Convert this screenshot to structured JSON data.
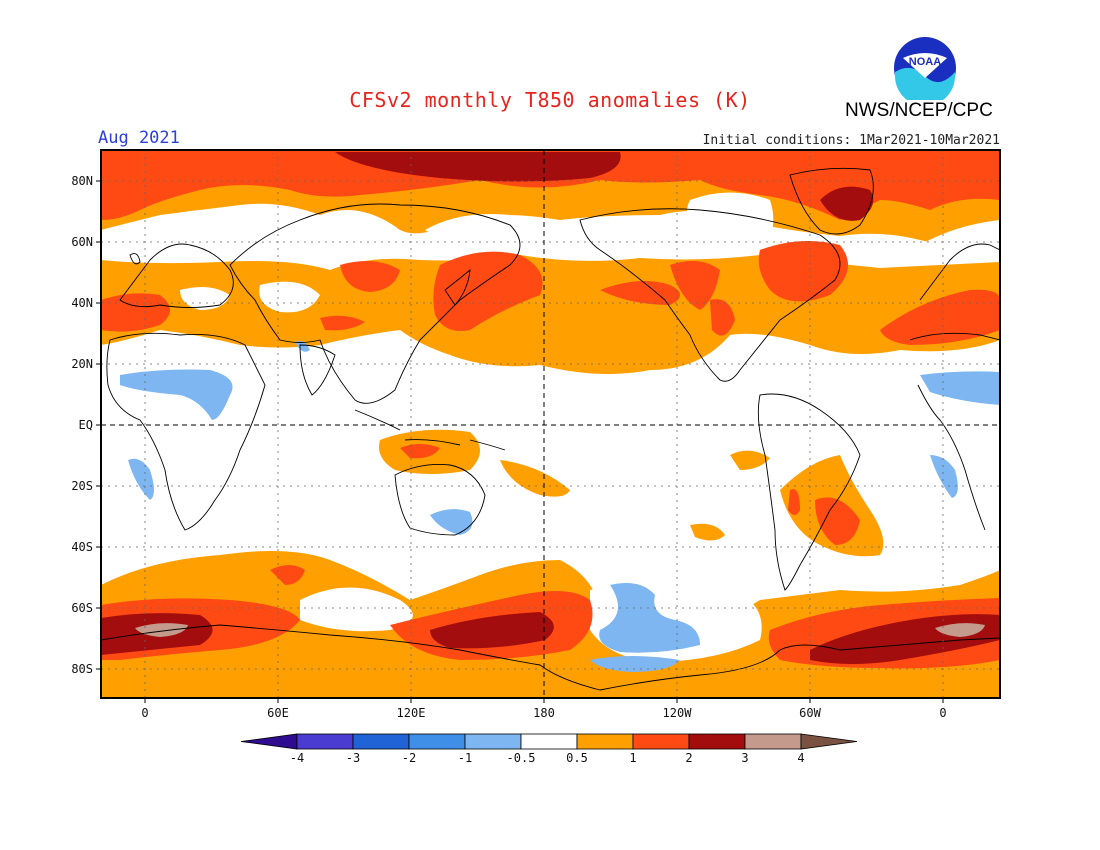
{
  "title": "CFSv2 monthly T850 anomalies (K)",
  "month": "Aug 2021",
  "initial_conditions": "Initial conditions: 1Mar2021-10Mar2021",
  "agency": "NWS/NCEP/CPC",
  "logo_text": "NOAA",
  "lat_labels": [
    "80N",
    "60N",
    "40N",
    "20N",
    "EQ",
    "20S",
    "40S",
    "60S",
    "80S"
  ],
  "lon_labels": [
    "0",
    "60E",
    "120E",
    "180",
    "120W",
    "60W",
    "0"
  ],
  "colorbar": {
    "labels": [
      "-4",
      "-3",
      "-2",
      "-1",
      "-0.5",
      "0.5",
      "1",
      "2",
      "3",
      "4"
    ],
    "colors": [
      "#2f0b8f",
      "#4a3cd0",
      "#1f63d6",
      "#3f8ee8",
      "#7db6f0",
      "#ffffff",
      "#ff9f00",
      "#ff4a14",
      "#a30d0d",
      "#c39a8c",
      "#7a5241"
    ]
  }
}
